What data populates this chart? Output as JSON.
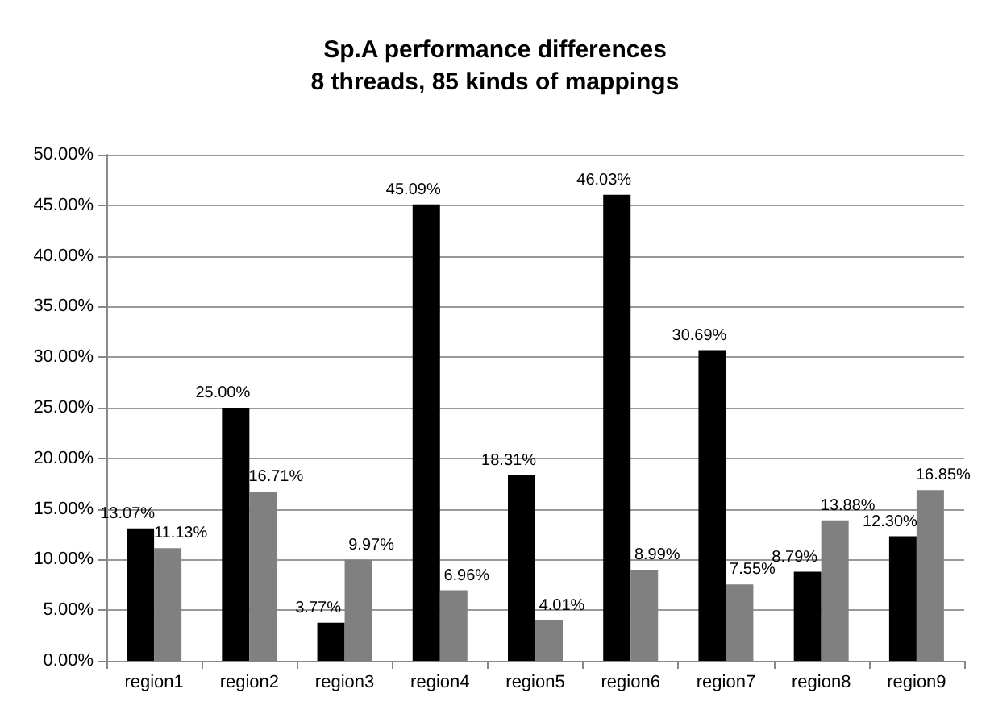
{
  "chart_data": {
    "type": "bar",
    "title": "Sp.A performance differences\n8 threads, 85 kinds of mappings",
    "categories": [
      "region1",
      "region2",
      "region3",
      "region4",
      "region5",
      "region6",
      "region7",
      "region8",
      "region9"
    ],
    "series": [
      {
        "color": "#000000",
        "values": [
          13.07,
          25.0,
          3.77,
          45.09,
          18.31,
          46.03,
          30.69,
          8.79,
          12.3
        ],
        "value_labels": [
          "13.07%",
          "25.00%",
          "3.77%",
          "45.09%",
          "18.31%",
          "46.03%",
          "30.69%",
          "8.79%",
          "12.30%"
        ]
      },
      {
        "color": "#808080",
        "values": [
          11.13,
          16.71,
          9.97,
          6.96,
          4.01,
          8.99,
          7.55,
          13.88,
          16.85
        ],
        "value_labels": [
          "11.13%",
          "16.71%",
          "9.97%",
          "6.96%",
          "4.01%",
          "8.99%",
          "7.55%",
          "13.88%",
          "16.85%"
        ]
      }
    ],
    "ylim": [
      0,
      50
    ],
    "yticks": [
      {
        "value": 0,
        "label": "0.00%"
      },
      {
        "value": 5,
        "label": "5.00%"
      },
      {
        "value": 10,
        "label": "10.00%"
      },
      {
        "value": 15,
        "label": "15.00%"
      },
      {
        "value": 20,
        "label": "20.00%"
      },
      {
        "value": 25,
        "label": "25.00%"
      },
      {
        "value": 30,
        "label": "30.00%"
      },
      {
        "value": 35,
        "label": "35.00%"
      },
      {
        "value": 40,
        "label": "40.00%"
      },
      {
        "value": 45,
        "label": "45.00%"
      },
      {
        "value": 50,
        "label": "50.00%"
      }
    ],
    "grid": "y"
  }
}
